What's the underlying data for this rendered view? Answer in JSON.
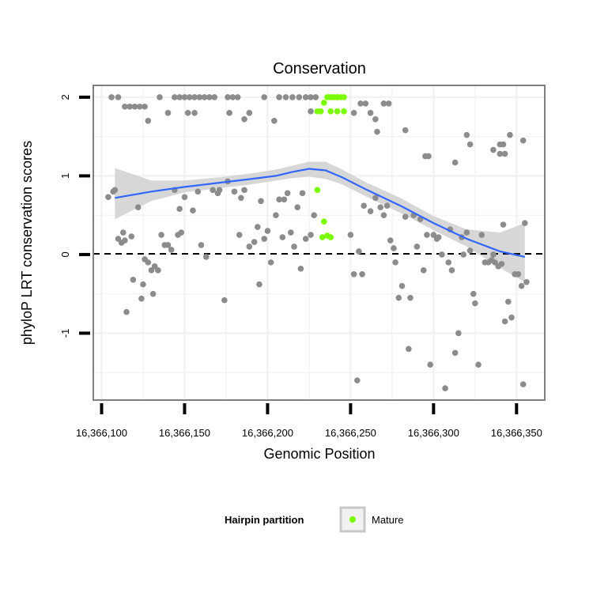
{
  "chart_data": {
    "type": "scatter",
    "title": "Conservation",
    "xlabel": "Genomic Position",
    "ylabel": "phyloP LRT conservation scores",
    "xlim": [
      16366095,
      16366367
    ],
    "ylim": [
      -1.85,
      2.15
    ],
    "x_ticks": [
      16366100,
      16366150,
      16366200,
      16366250,
      16366300,
      16366350
    ],
    "x_tick_labels": [
      "16,366,100",
      "16,366,150",
      "16,366,200",
      "16,366,250",
      "16,366,300",
      "16,366,350"
    ],
    "y_ticks": [
      -1,
      0,
      1,
      2
    ],
    "y_tick_labels": [
      "-1",
      "0",
      "1",
      "2"
    ],
    "grid": true,
    "reference_line": {
      "y": 0,
      "style": "dashed"
    },
    "legend": {
      "title": "Hairpin partition",
      "position": "bottom",
      "entries": [
        "Mature"
      ]
    },
    "colors": {
      "points": "#8c8c8c",
      "mature": "#7cfc00",
      "smooth": "#3366ff",
      "band": "#d3d3d3",
      "panel_border": "#7f7f7f",
      "grid": "#f2f2f2"
    },
    "smooth": {
      "x": [
        16366108,
        16366130,
        16366150,
        16366170,
        16366190,
        16366205,
        16366215,
        16366225,
        16366235,
        16366245,
        16366260,
        16366280,
        16366300,
        16366320,
        16366340,
        16366355
      ],
      "y": [
        0.72,
        0.8,
        0.86,
        0.91,
        0.96,
        1.0,
        1.05,
        1.09,
        1.07,
        0.98,
        0.82,
        0.62,
        0.4,
        0.2,
        0.04,
        -0.03
      ],
      "lower": [
        0.45,
        0.68,
        0.79,
        0.84,
        0.89,
        0.94,
        0.97,
        0.99,
        0.96,
        0.89,
        0.73,
        0.53,
        0.31,
        0.1,
        -0.17,
        -0.35
      ],
      "upper": [
        1.1,
        0.94,
        0.94,
        0.98,
        1.03,
        1.08,
        1.13,
        1.18,
        1.18,
        1.08,
        0.91,
        0.72,
        0.49,
        0.32,
        0.28,
        0.4
      ]
    },
    "series": [
      {
        "name": "Mature",
        "points": [
          [
            16366230,
            1.82
          ],
          [
            16366232,
            1.82
          ],
          [
            16366234,
            1.93
          ],
          [
            16366236,
            2.0
          ],
          [
            16366238,
            2.0
          ],
          [
            16366240,
            2.0
          ],
          [
            16366242,
            2.0
          ],
          [
            16366244,
            2.0
          ],
          [
            16366246,
            2.0
          ],
          [
            16366238,
            1.82
          ],
          [
            16366242,
            1.82
          ],
          [
            16366246,
            1.82
          ],
          [
            16366230,
            0.82
          ],
          [
            16366234,
            0.42
          ],
          [
            16366233,
            0.22
          ],
          [
            16366236,
            0.24
          ],
          [
            16366238,
            0.22
          ]
        ]
      },
      {
        "points": [
          [
            16366106,
            2.0
          ],
          [
            16366110,
            2.0
          ],
          [
            16366114,
            1.88
          ],
          [
            16366117,
            1.88
          ],
          [
            16366120,
            1.88
          ],
          [
            16366123,
            1.88
          ],
          [
            16366126,
            1.88
          ],
          [
            16366128,
            1.7
          ],
          [
            16366135,
            2.0
          ],
          [
            16366140,
            1.8
          ],
          [
            16366144,
            2.0
          ],
          [
            16366147,
            2.0
          ],
          [
            16366150,
            2.0
          ],
          [
            16366153,
            2.0
          ],
          [
            16366156,
            2.0
          ],
          [
            16366159,
            2.0
          ],
          [
            16366162,
            2.0
          ],
          [
            16366165,
            2.0
          ],
          [
            16366168,
            2.0
          ],
          [
            16366152,
            1.8
          ],
          [
            16366156,
            1.8
          ],
          [
            16366176,
            2.0
          ],
          [
            16366179,
            2.0
          ],
          [
            16366182,
            2.0
          ],
          [
            16366177,
            1.8
          ],
          [
            16366186,
            1.72
          ],
          [
            16366189,
            1.8
          ],
          [
            16366198,
            2.0
          ],
          [
            16366204,
            1.7
          ],
          [
            16366207,
            2.0
          ],
          [
            16366211,
            2.0
          ],
          [
            16366215,
            2.0
          ],
          [
            16366219,
            2.0
          ],
          [
            16366223,
            2.0
          ],
          [
            16366226,
            2.0
          ],
          [
            16366229,
            2.0
          ],
          [
            16366226,
            1.82
          ],
          [
            16366252,
            1.8
          ],
          [
            16366256,
            1.92
          ],
          [
            16366259,
            1.92
          ],
          [
            16366262,
            1.8
          ],
          [
            16366265,
            1.72
          ],
          [
            16366266,
            1.56
          ],
          [
            16366270,
            1.92
          ],
          [
            16366273,
            1.92
          ],
          [
            16366283,
            1.58
          ],
          [
            16366295,
            1.25
          ],
          [
            16366297,
            1.25
          ],
          [
            16366313,
            1.17
          ],
          [
            16366320,
            1.52
          ],
          [
            16366322,
            1.4
          ],
          [
            16366336,
            1.33
          ],
          [
            16366340,
            1.4
          ],
          [
            16366342,
            1.4
          ],
          [
            16366340,
            1.28
          ],
          [
            16366343,
            1.28
          ],
          [
            16366346,
            1.52
          ],
          [
            16366354,
            1.45
          ],
          [
            16366108,
            0.82
          ],
          [
            16366110,
            0.2
          ],
          [
            16366112,
            0.15
          ],
          [
            16366114,
            0.18
          ],
          [
            16366118,
            0.23
          ],
          [
            16366122,
            0.6
          ],
          [
            16366126,
            -0.06
          ],
          [
            16366128,
            -0.1
          ],
          [
            16366130,
            -0.2
          ],
          [
            16366132,
            -0.15
          ],
          [
            16366134,
            -0.2
          ],
          [
            16366136,
            0.25
          ],
          [
            16366140,
            0.12
          ],
          [
            16366144,
            0.82
          ],
          [
            16366146,
            0.25
          ],
          [
            16366148,
            0.28
          ],
          [
            16366150,
            0.73
          ],
          [
            16366155,
            0.56
          ],
          [
            16366160,
            0.12
          ],
          [
            16366163,
            -0.03
          ],
          [
            16366167,
            0.82
          ],
          [
            16366170,
            0.78
          ],
          [
            16366174,
            -0.58
          ],
          [
            16366176,
            0.93
          ],
          [
            16366180,
            0.8
          ],
          [
            16366183,
            0.25
          ],
          [
            16366186,
            0.82
          ],
          [
            16366189,
            0.1
          ],
          [
            16366192,
            0.16
          ],
          [
            16366194,
            0.35
          ],
          [
            16366196,
            0.68
          ],
          [
            16366198,
            0.2
          ],
          [
            16366200,
            0.3
          ],
          [
            16366202,
            -0.1
          ],
          [
            16366205,
            0.5
          ],
          [
            16366207,
            0.7
          ],
          [
            16366209,
            0.22
          ],
          [
            16366212,
            0.78
          ],
          [
            16366214,
            0.28
          ],
          [
            16366216,
            0.1
          ],
          [
            16366218,
            0.6
          ],
          [
            16366221,
            0.78
          ],
          [
            16366223,
            0.2
          ],
          [
            16366226,
            0.25
          ],
          [
            16366228,
            0.5
          ],
          [
            16366250,
            0.25
          ],
          [
            16366252,
            -0.25
          ],
          [
            16366254,
            -1.6
          ],
          [
            16366255,
            0.04
          ],
          [
            16366258,
            0.62
          ],
          [
            16366262,
            0.55
          ],
          [
            16366265,
            0.72
          ],
          [
            16366268,
            0.6
          ],
          [
            16366270,
            0.5
          ],
          [
            16366274,
            0.18
          ],
          [
            16366276,
            0.08
          ],
          [
            16366279,
            -0.55
          ],
          [
            16366281,
            -0.4
          ],
          [
            16366283,
            0.48
          ],
          [
            16366286,
            -0.55
          ],
          [
            16366288,
            0.5
          ],
          [
            16366290,
            0.1
          ],
          [
            16366292,
            0.45
          ],
          [
            16366294,
            -0.2
          ],
          [
            16366296,
            0.25
          ],
          [
            16366298,
            -1.4
          ],
          [
            16366300,
            0.25
          ],
          [
            16366302,
            0.2
          ],
          [
            16366303,
            0.22
          ],
          [
            16366305,
            0.0
          ],
          [
            16366307,
            -1.7
          ],
          [
            16366309,
            -0.1
          ],
          [
            16366311,
            -0.2
          ],
          [
            16366313,
            -1.25
          ],
          [
            16366315,
            -1.0
          ],
          [
            16366317,
            0.22
          ],
          [
            16366320,
            0.28
          ],
          [
            16366322,
            0.05
          ],
          [
            16366324,
            -0.5
          ],
          [
            16366325,
            -0.62
          ],
          [
            16366327,
            -1.4
          ],
          [
            16366329,
            0.25
          ],
          [
            16366331,
            -0.1
          ],
          [
            16366333,
            -0.1
          ],
          [
            16366335,
            -0.07
          ],
          [
            16366337,
            -0.1
          ],
          [
            16366339,
            -0.15
          ],
          [
            16366341,
            -0.12
          ],
          [
            16366343,
            -0.85
          ],
          [
            16366345,
            -0.6
          ],
          [
            16366347,
            -0.8
          ],
          [
            16366349,
            -0.25
          ],
          [
            16366351,
            -0.25
          ],
          [
            16366353,
            -0.4
          ],
          [
            16366354,
            -1.65
          ],
          [
            16366355,
            0.4
          ],
          [
            16366356,
            -0.35
          ],
          [
            16366104,
            0.73
          ],
          [
            16366107,
            0.8
          ],
          [
            16366113,
            0.28
          ],
          [
            16366125,
            -0.38
          ],
          [
            16366131,
            -0.5
          ],
          [
            16366124,
            -0.56
          ],
          [
            16366115,
            -0.73
          ],
          [
            16366119,
            -0.32
          ],
          [
            16366138,
            0.12
          ],
          [
            16366142,
            0.06
          ],
          [
            16366147,
            0.58
          ],
          [
            16366158,
            0.8
          ],
          [
            16366171,
            0.82
          ],
          [
            16366184,
            0.72
          ],
          [
            16366195,
            -0.38
          ],
          [
            16366210,
            0.7
          ],
          [
            16366220,
            -0.18
          ],
          [
            16366257,
            -0.25
          ],
          [
            16366272,
            0.62
          ],
          [
            16366277,
            -0.1
          ],
          [
            16366285,
            -1.2
          ],
          [
            16366310,
            0.32
          ],
          [
            16366318,
            0.0
          ],
          [
            16366336,
            0.0
          ],
          [
            16366342,
            0.38
          ]
        ]
      }
    ]
  }
}
